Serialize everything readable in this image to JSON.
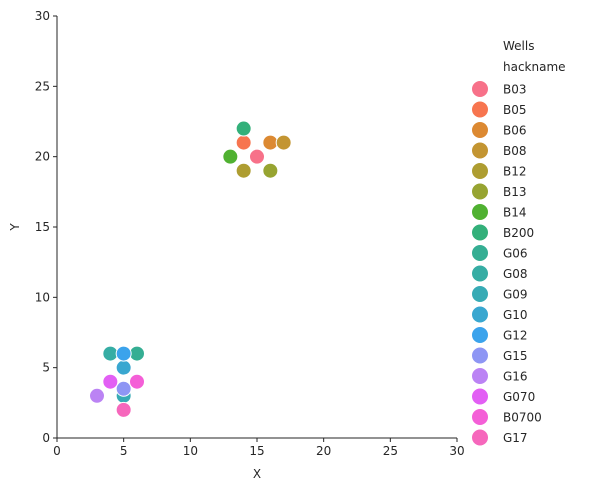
{
  "chart_data": {
    "type": "scatter",
    "title": "",
    "xlabel": "X",
    "ylabel": "Y",
    "xlim": [
      0,
      30
    ],
    "ylim": [
      0,
      30
    ],
    "xticks": [
      "0",
      "5",
      "10",
      "15",
      "20",
      "25",
      "30"
    ],
    "yticks": [
      "0",
      "5",
      "10",
      "15",
      "20",
      "25",
      "30"
    ],
    "grid": false,
    "legend": {
      "placement": "right",
      "title": "Wells",
      "subtitle": "hackname"
    },
    "series": [
      {
        "name": "B03",
        "color": "#f77189",
        "x": 15,
        "y": 20
      },
      {
        "name": "B05",
        "color": "#f7754f",
        "x": 14,
        "y": 21
      },
      {
        "name": "B06",
        "color": "#dc8932",
        "x": 16,
        "y": 21
      },
      {
        "name": "B08",
        "color": "#c39532",
        "x": 17,
        "y": 21
      },
      {
        "name": "B12",
        "color": "#ae9d31",
        "x": 14,
        "y": 19
      },
      {
        "name": "B13",
        "color": "#97a431",
        "x": 16,
        "y": 19
      },
      {
        "name": "B14",
        "color": "#50b131",
        "x": 13,
        "y": 20
      },
      {
        "name": "B200",
        "color": "#33b07a",
        "x": 14,
        "y": 22
      },
      {
        "name": "G06",
        "color": "#35ae93",
        "x": 6,
        "y": 6
      },
      {
        "name": "G08",
        "color": "#36ada4",
        "x": 4,
        "y": 6
      },
      {
        "name": "G09",
        "color": "#37abb5",
        "x": 5,
        "y": 3
      },
      {
        "name": "G10",
        "color": "#39a7d0",
        "x": 5,
        "y": 5
      },
      {
        "name": "G12",
        "color": "#3ba3ec",
        "x": 5,
        "y": 6
      },
      {
        "name": "G15",
        "color": "#8e96f4",
        "x": 5,
        "y": 3.5
      },
      {
        "name": "G16",
        "color": "#bb83f4",
        "x": 3,
        "y": 3
      },
      {
        "name": "G070",
        "color": "#e25ff4",
        "x": 4,
        "y": 4
      },
      {
        "name": "B0700",
        "color": "#f45fd7",
        "x": 6,
        "y": 4
      },
      {
        "name": "G17",
        "color": "#f667bc",
        "x": 5,
        "y": 2
      }
    ]
  }
}
